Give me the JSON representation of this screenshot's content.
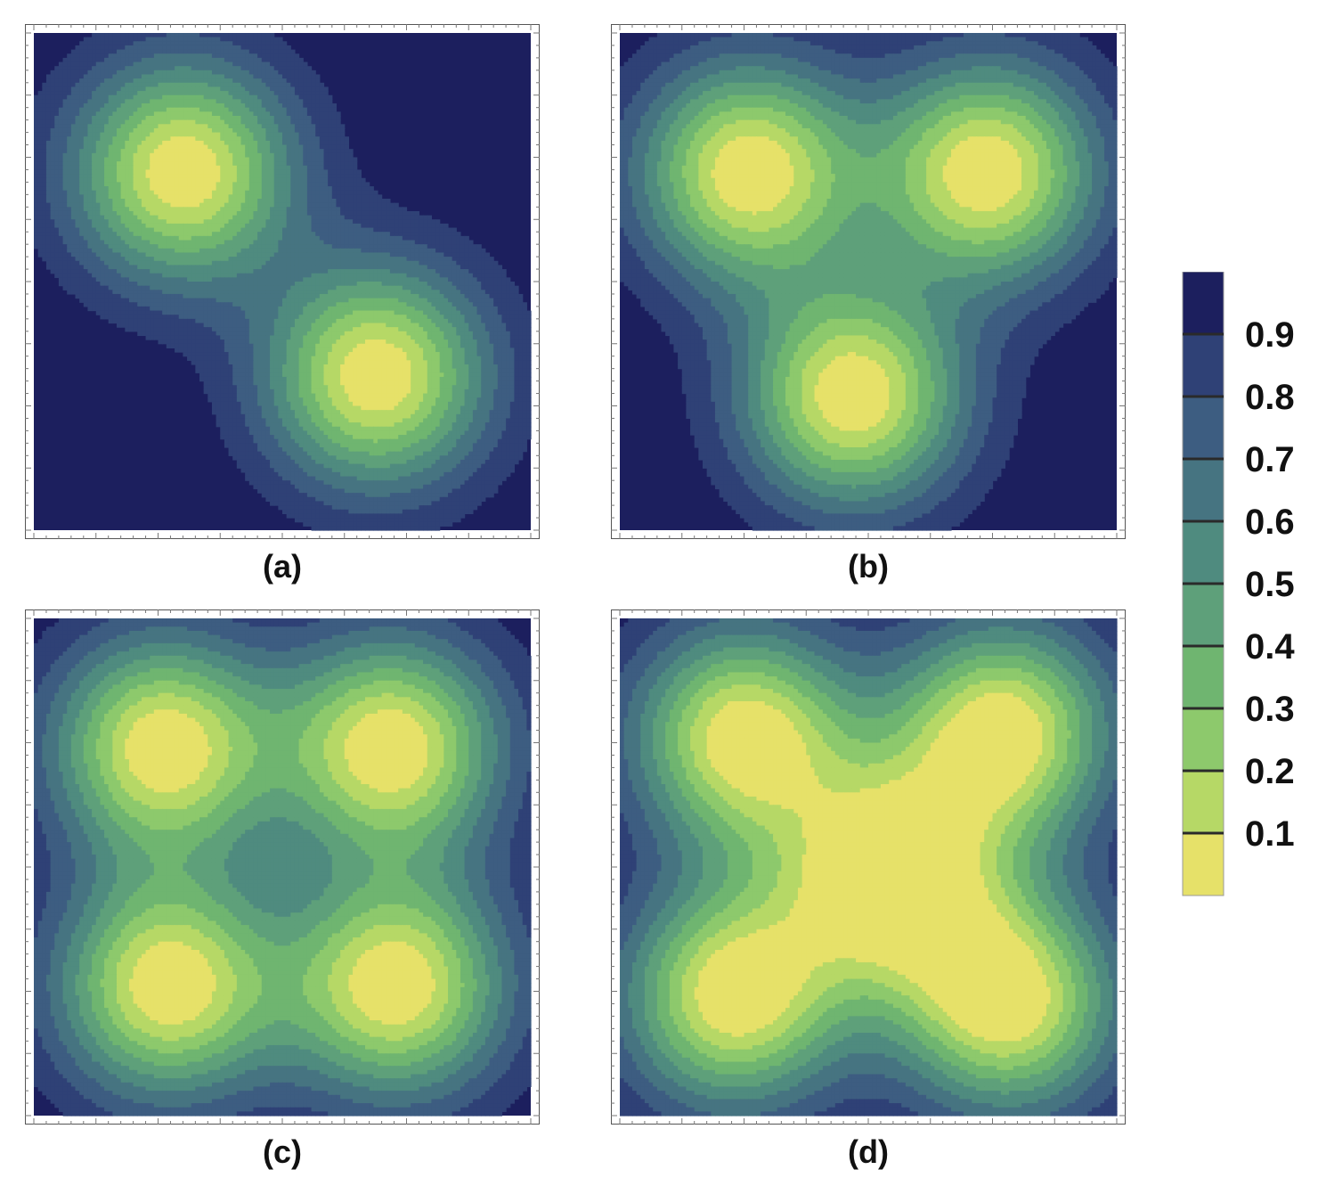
{
  "chart_data": [
    {
      "type": "contour",
      "caption": "(a)",
      "xlim": [
        0,
        1
      ],
      "ylim": [
        0,
        1
      ],
      "grid": false,
      "levels": [
        0.1,
        0.2,
        0.3,
        0.4,
        0.5,
        0.6,
        0.7,
        0.8,
        0.9
      ],
      "sources": [
        {
          "x": 0.3,
          "y": 0.72
        },
        {
          "x": 0.69,
          "y": 0.31
        }
      ]
    },
    {
      "type": "contour",
      "caption": "(b)",
      "xlim": [
        0,
        1
      ],
      "ylim": [
        0,
        1
      ],
      "grid": false,
      "levels": [
        0.1,
        0.2,
        0.3,
        0.4,
        0.5,
        0.6,
        0.7,
        0.8,
        0.9
      ],
      "sources": [
        {
          "x": 0.26,
          "y": 0.72
        },
        {
          "x": 0.74,
          "y": 0.72
        },
        {
          "x": 0.47,
          "y": 0.27
        }
      ]
    },
    {
      "type": "contour",
      "caption": "(c)",
      "xlim": [
        0,
        1
      ],
      "ylim": [
        0,
        1
      ],
      "grid": false,
      "levels": [
        0.1,
        0.2,
        0.3,
        0.4,
        0.5,
        0.6,
        0.7,
        0.8,
        0.9
      ],
      "sources": [
        {
          "x": 0.26,
          "y": 0.74
        },
        {
          "x": 0.72,
          "y": 0.74
        },
        {
          "x": 0.27,
          "y": 0.26
        },
        {
          "x": 0.73,
          "y": 0.26
        }
      ]
    },
    {
      "type": "contour",
      "caption": "(d)",
      "xlim": [
        0,
        1
      ],
      "ylim": [
        0,
        1
      ],
      "grid": false,
      "levels": [
        0.1,
        0.2,
        0.3,
        0.4,
        0.5,
        0.6,
        0.7,
        0.8,
        0.9
      ],
      "sources": [
        {
          "x": 0.25,
          "y": 0.76
        },
        {
          "x": 0.77,
          "y": 0.77
        },
        {
          "x": 0.54,
          "y": 0.48
        },
        {
          "x": 0.23,
          "y": 0.24
        },
        {
          "x": 0.78,
          "y": 0.23
        }
      ]
    }
  ],
  "colorbar": {
    "tick_labels": [
      "0.9",
      "0.8",
      "0.7",
      "0.6",
      "0.5",
      "0.4",
      "0.3",
      "0.2",
      "0.1"
    ],
    "bands": [
      "#e6e169",
      "#b6d866",
      "#8dc96c",
      "#6fb570",
      "#5ea07a",
      "#4f8b7f",
      "#467481",
      "#3d5d81",
      "#2f4176",
      "#1c1f5e"
    ]
  }
}
